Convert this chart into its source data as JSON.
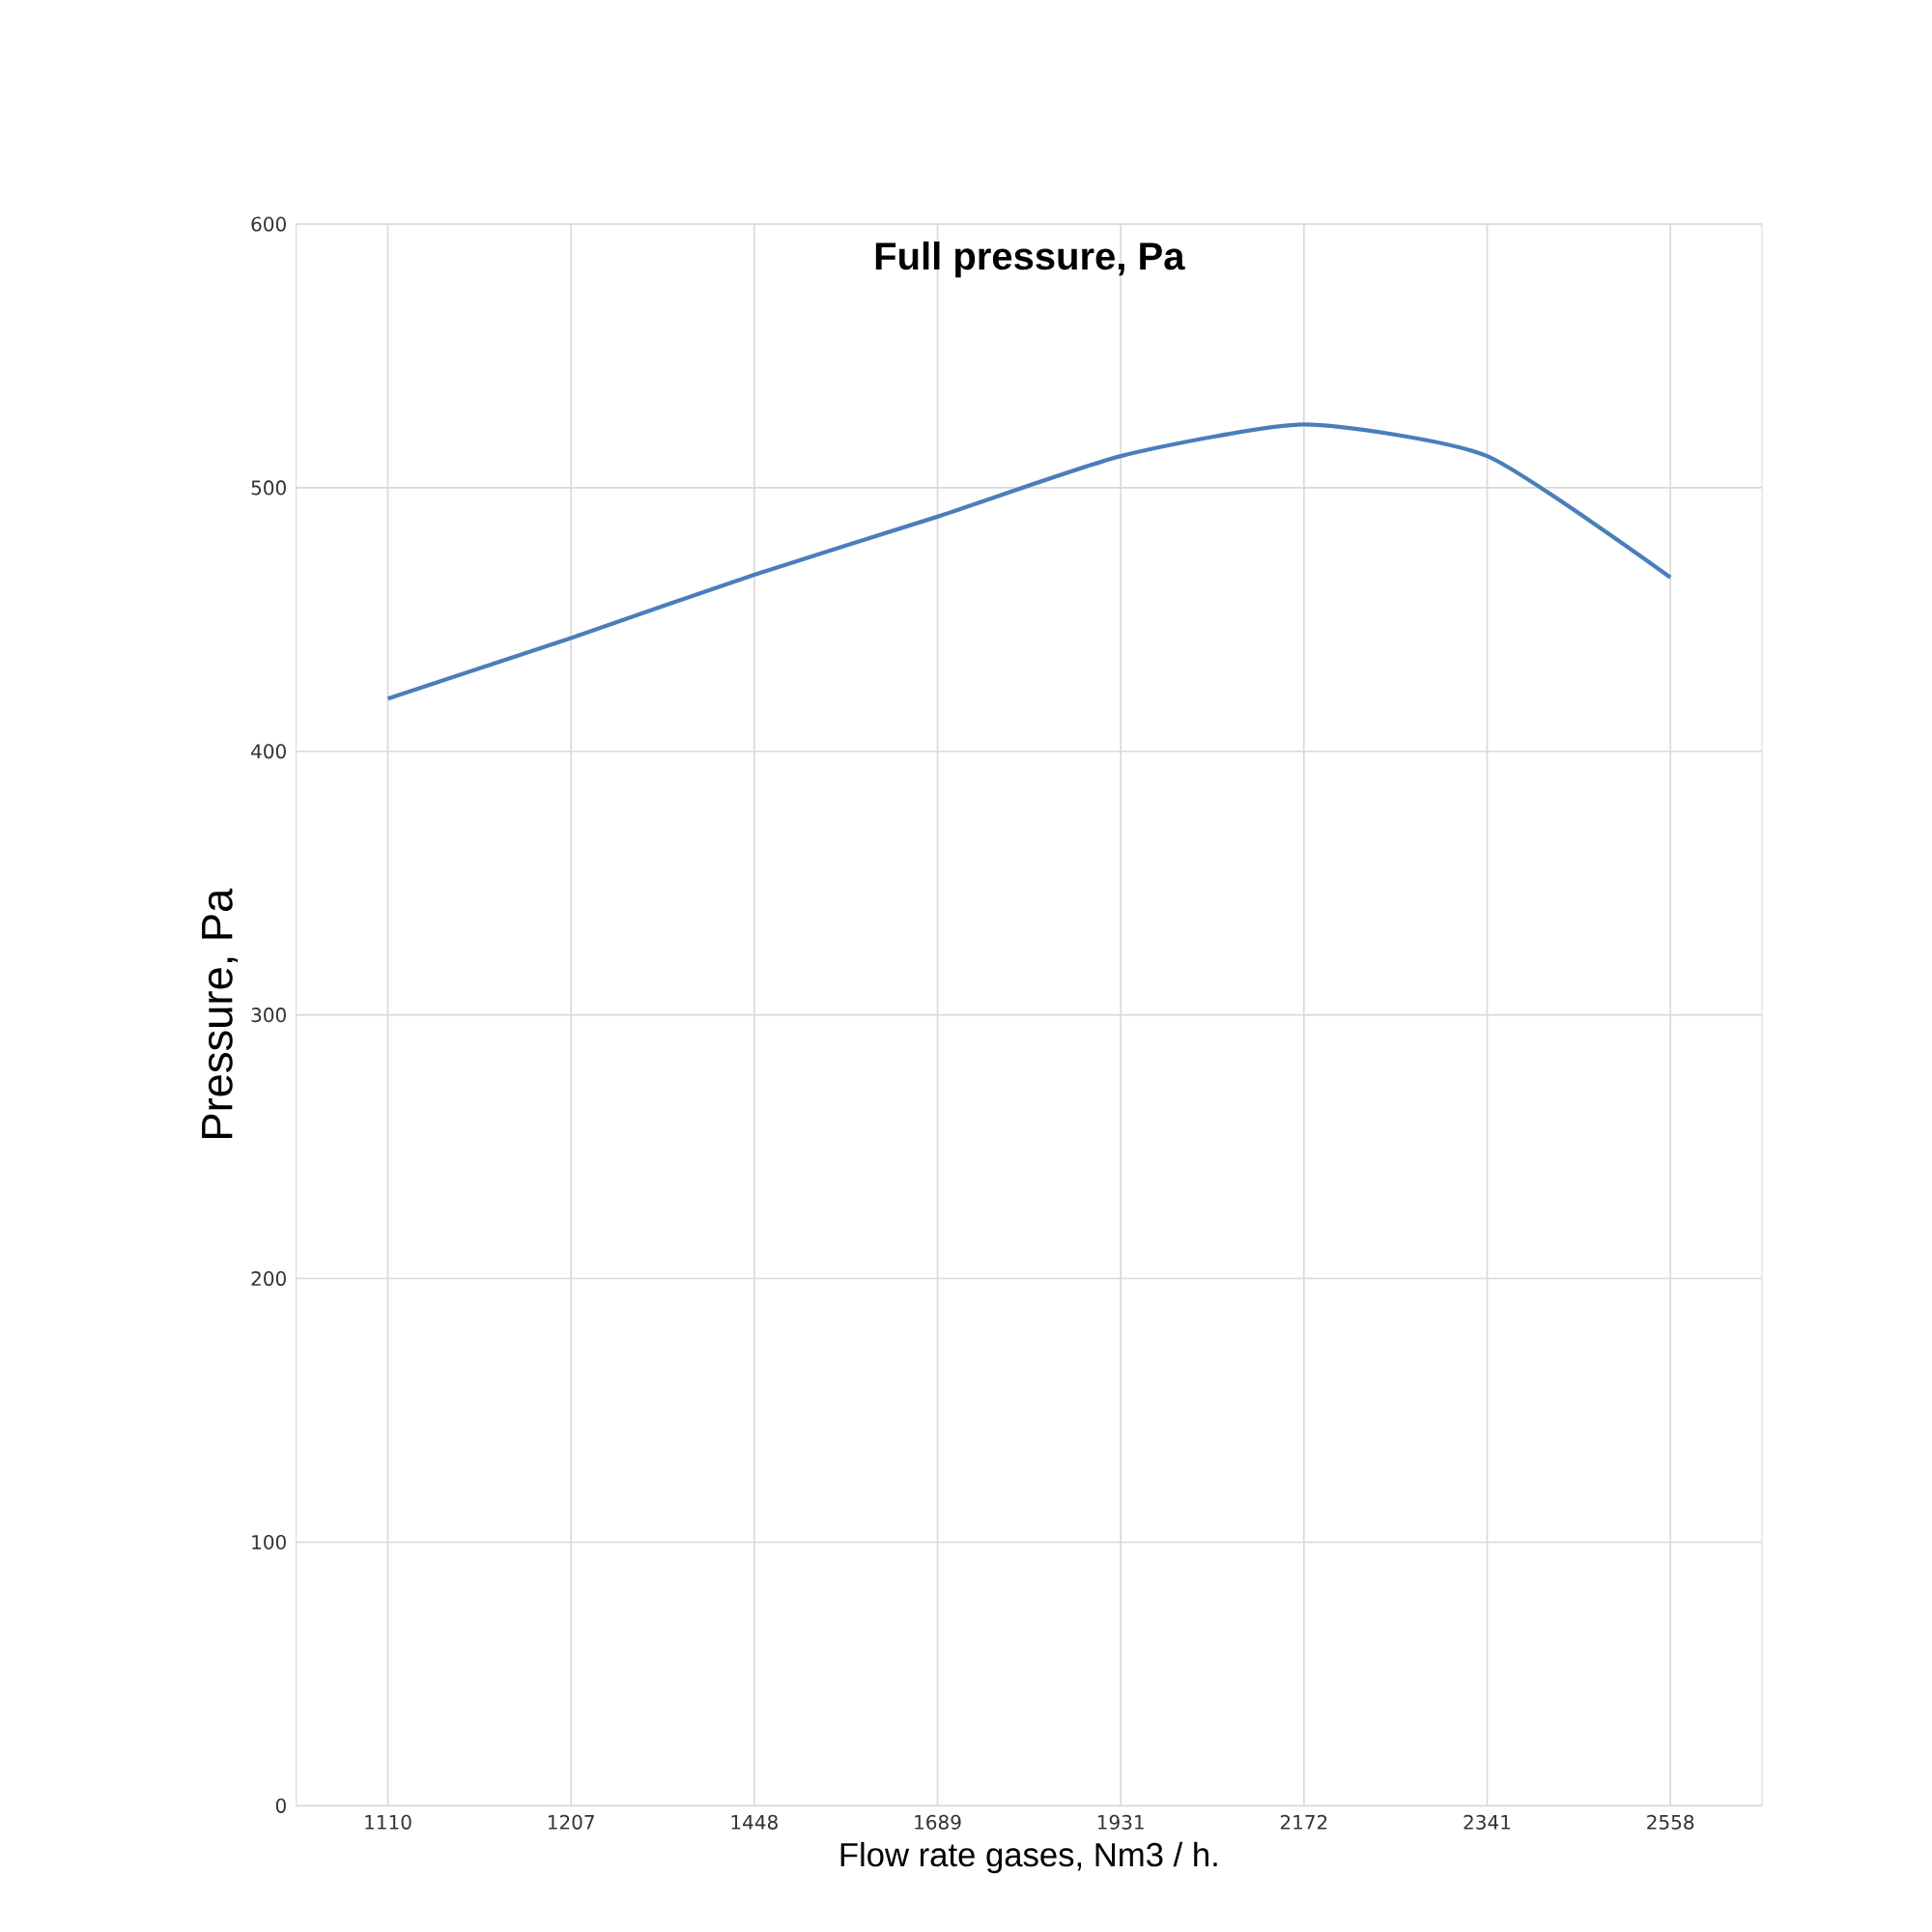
{
  "chart_data": {
    "type": "line",
    "title": "Full pressure, Pa",
    "xlabel": "Flow rate gases, Nm3 / h.",
    "ylabel": "Pressure, Pa",
    "categories": [
      "1110",
      "1207",
      "1448",
      "1689",
      "1931",
      "2172",
      "2341",
      "2558"
    ],
    "series": [
      {
        "color": "#4a7ebb",
        "values": [
          420,
          443,
          467,
          489,
          512,
          524,
          512,
          466
        ]
      }
    ],
    "ylim": [
      0,
      600
    ],
    "yticks": [
      0,
      100,
      200,
      300,
      400,
      500,
      600
    ],
    "grid": true,
    "marker": "none",
    "line_style": "solid"
  }
}
